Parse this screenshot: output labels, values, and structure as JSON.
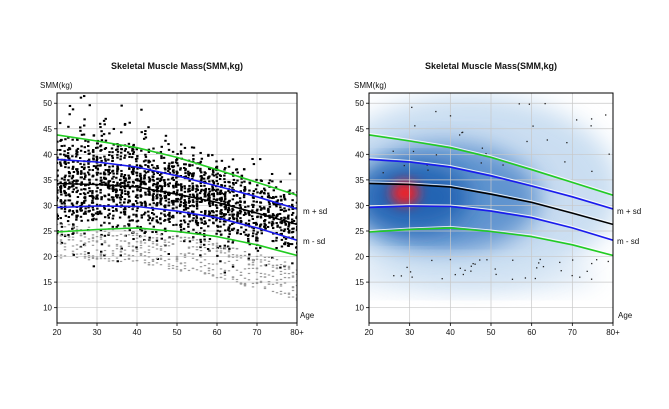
{
  "chart_data": [
    {
      "type": "scatter",
      "title": "Skeletal Muscle Mass(SMM,kg)",
      "ylabel": "SMM(kg)",
      "xlabel": "Age",
      "x_ticks": [
        "20",
        "30",
        "40",
        "50",
        "60",
        "70",
        "80+"
      ],
      "y_ticks": [
        "10",
        "15",
        "20",
        "25",
        "30",
        "35",
        "40",
        "45",
        "50"
      ],
      "xlim": [
        20,
        80
      ],
      "ylim": [
        7,
        52
      ],
      "grid": true,
      "background": "white",
      "annotations": [
        "m + sd",
        "m - sd"
      ],
      "series": [
        {
          "color": "#22cc22",
          "x": [
            20,
            30,
            40,
            50,
            60,
            70,
            80
          ],
          "y": [
            43.8,
            42.6,
            41.3,
            39.4,
            37.0,
            34.5,
            32.0
          ]
        },
        {
          "color": "#1a1aee",
          "x": [
            20,
            30,
            40,
            50,
            60,
            70,
            80
          ],
          "y": [
            39.0,
            38.5,
            37.5,
            35.8,
            33.8,
            31.7,
            29.3
          ]
        },
        {
          "color": "#000000",
          "x": [
            20,
            30,
            40,
            50,
            60,
            70,
            80
          ],
          "y": [
            34.3,
            34.1,
            33.6,
            32.2,
            30.6,
            28.5,
            26.3
          ]
        },
        {
          "color": "#1a1aee",
          "x": [
            20,
            30,
            40,
            50,
            60,
            70,
            80
          ],
          "y": [
            29.6,
            29.9,
            29.8,
            28.9,
            27.6,
            25.6,
            23.2
          ]
        },
        {
          "color": "#22cc22",
          "x": [
            20,
            30,
            40,
            50,
            60,
            70,
            80
          ],
          "y": [
            24.8,
            25.3,
            25.6,
            24.9,
            23.9,
            22.3,
            20.2
          ]
        }
      ]
    },
    {
      "type": "heatmap",
      "title": "Skeletal Muscle Mass(SMM,kg)",
      "ylabel": "SMM(kg)",
      "xlabel": "Age",
      "x_ticks": [
        "20",
        "30",
        "40",
        "50",
        "60",
        "70",
        "80+"
      ],
      "y_ticks": [
        "10",
        "15",
        "20",
        "25",
        "30",
        "35",
        "40",
        "45",
        "50"
      ],
      "xlim": [
        20,
        80
      ],
      "ylim": [
        7,
        52
      ],
      "grid": true,
      "colormap": [
        "#ffffff",
        "#1f5fb0",
        "#ff0000"
      ],
      "density_peak": {
        "x": 29,
        "y": 33.5
      },
      "annotations": [
        "m + sd",
        "m - sd"
      ],
      "series": [
        {
          "color": "#22cc22",
          "x": [
            20,
            30,
            40,
            50,
            60,
            70,
            80
          ],
          "y": [
            43.8,
            42.6,
            41.3,
            39.4,
            37.0,
            34.5,
            32.0
          ]
        },
        {
          "color": "#1a1aee",
          "x": [
            20,
            30,
            40,
            50,
            60,
            70,
            80
          ],
          "y": [
            39.0,
            38.5,
            37.5,
            35.8,
            33.8,
            31.7,
            29.3
          ]
        },
        {
          "color": "#000000",
          "x": [
            20,
            30,
            40,
            50,
            60,
            70,
            80
          ],
          "y": [
            34.3,
            34.1,
            33.6,
            32.2,
            30.6,
            28.5,
            26.3
          ]
        },
        {
          "color": "#1a1aee",
          "x": [
            20,
            30,
            40,
            50,
            60,
            70,
            80
          ],
          "y": [
            29.6,
            29.9,
            29.8,
            28.9,
            27.6,
            25.6,
            23.2
          ]
        },
        {
          "color": "#22cc22",
          "x": [
            20,
            30,
            40,
            50,
            60,
            70,
            80
          ],
          "y": [
            24.8,
            25.3,
            25.6,
            24.9,
            23.9,
            22.3,
            20.2
          ]
        }
      ]
    }
  ]
}
